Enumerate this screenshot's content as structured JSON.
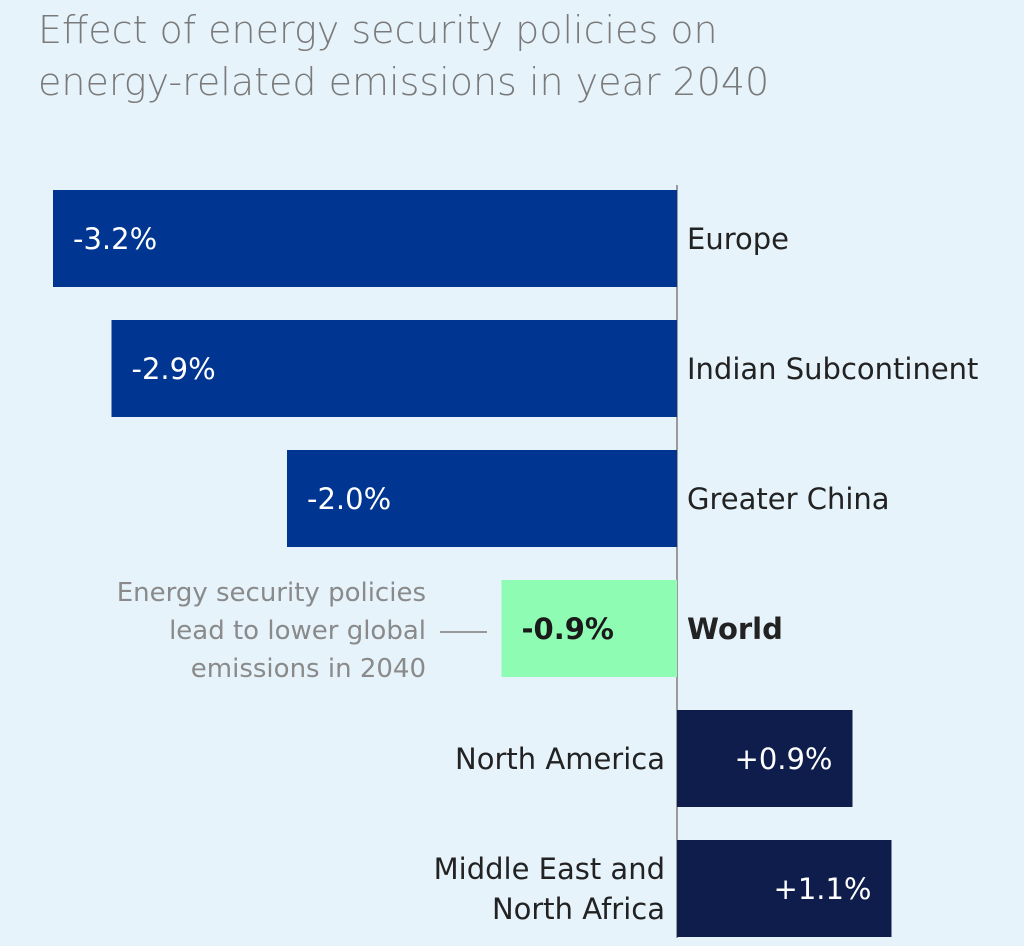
{
  "chart_data": {
    "type": "bar",
    "orientation": "horizontal",
    "title": "Effect of energy security policies on energy-related emissions in year 2040",
    "categories": [
      "Europe",
      "Indian Subcontinent",
      "Greater China",
      "World",
      "North America",
      "Middle East and North Africa"
    ],
    "values": [
      -3.2,
      -2.9,
      -2.0,
      -0.9,
      0.9,
      1.1
    ],
    "value_labels": [
      "-3.2%",
      "-2.9%",
      "-2.0%",
      "-0.9%",
      "+0.9%",
      "+1.1%"
    ],
    "colors": [
      "#003591",
      "#003591",
      "#003591",
      "#8ffcb4",
      "#0e1d4b",
      "#0e1d4b"
    ],
    "highlight_index": 3,
    "annotation": "Energy security policies lead to lower global emissions in 2040"
  }
}
